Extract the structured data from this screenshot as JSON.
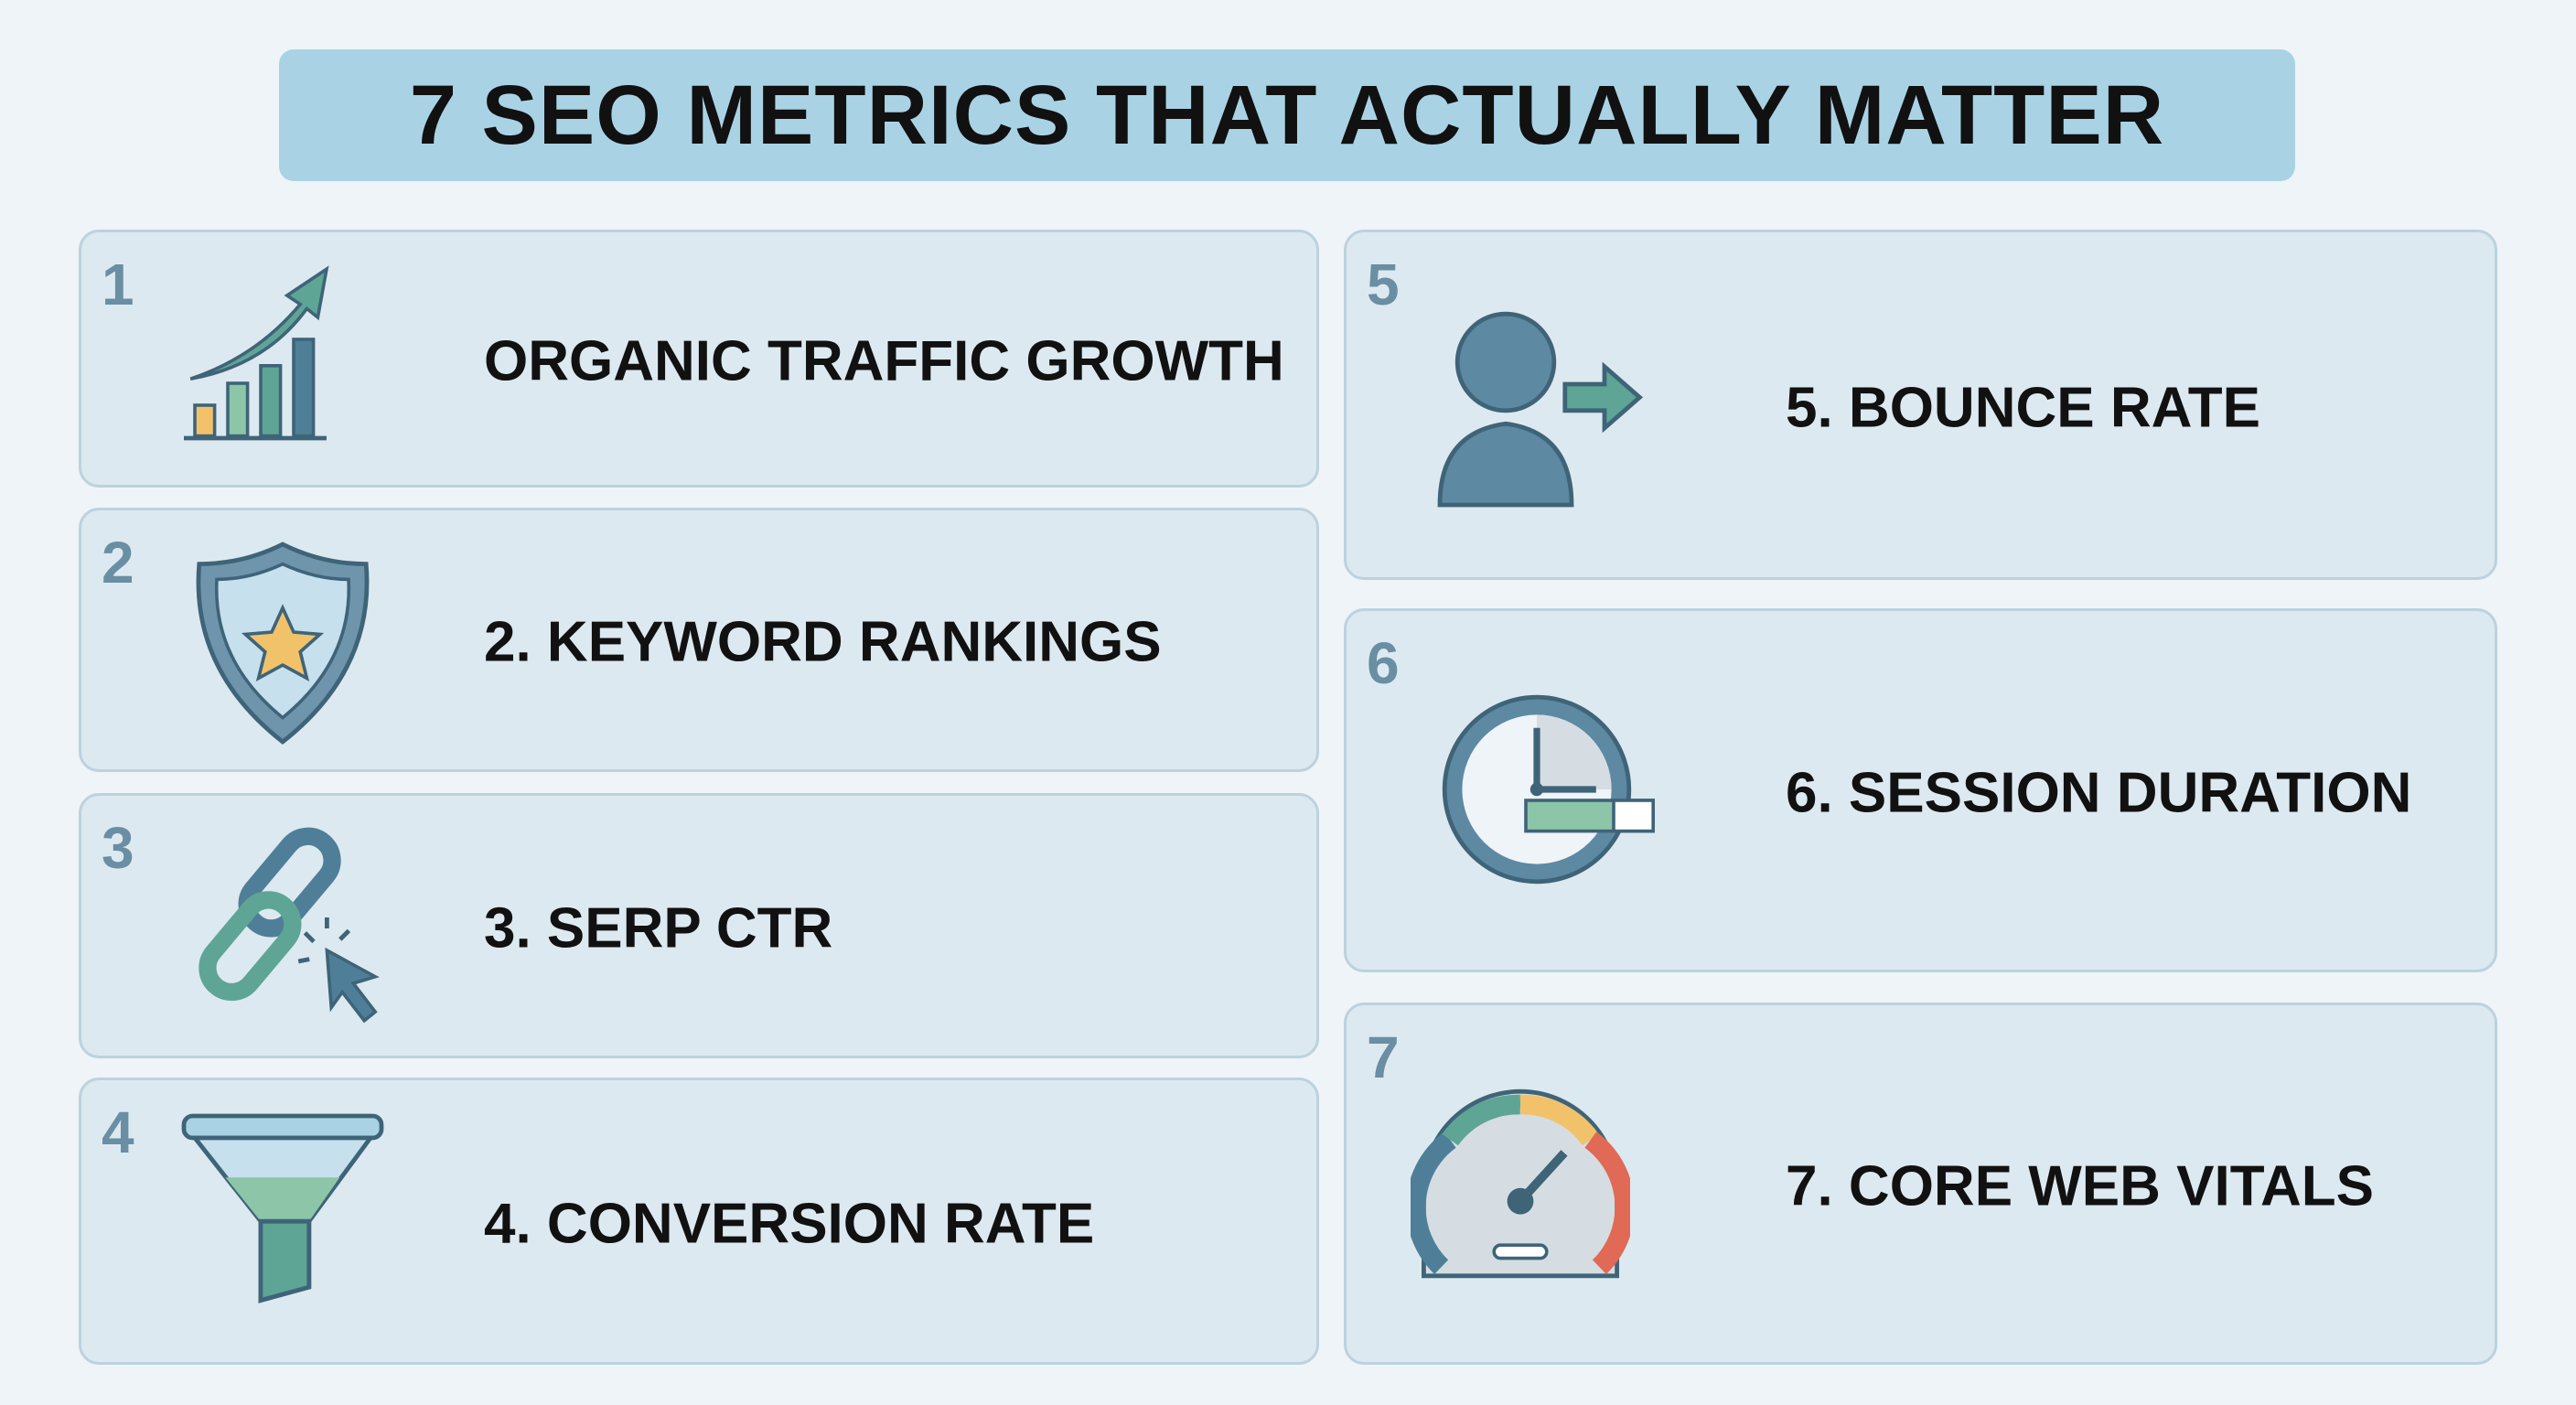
{
  "title": "7 SEO METRICS THAT ACTUALLY MATTER",
  "cards": [
    {
      "number": "1",
      "label": "ORGANIC TRAFFIC GROWTH"
    },
    {
      "number": "2",
      "label": "2. KEYWORD RANKINGS"
    },
    {
      "number": "3",
      "label": "3. SERP CTR"
    },
    {
      "number": "4",
      "label": "4. CONVERSION RATE"
    },
    {
      "number": "5",
      "label": "5. BOUNCE RATE"
    },
    {
      "number": "6",
      "label": "6. SESSION DURATION"
    },
    {
      "number": "7",
      "label": "7. CORE WEB VITALS"
    }
  ]
}
